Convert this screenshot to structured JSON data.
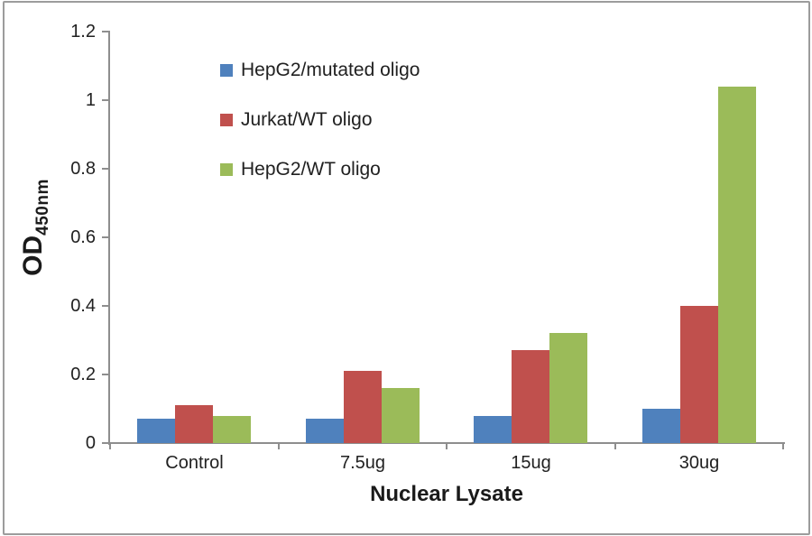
{
  "chart_data": {
    "type": "bar",
    "categories": [
      "Control",
      "7.5ug",
      "15ug",
      "30ug"
    ],
    "series": [
      {
        "name": "HepG2/mutated oligo",
        "color": "#4F81BD",
        "values": [
          0.07,
          0.07,
          0.08,
          0.1
        ]
      },
      {
        "name": "Jurkat/WT oligo",
        "color": "#C0504D",
        "values": [
          0.11,
          0.21,
          0.27,
          0.4
        ]
      },
      {
        "name": "HepG2/WT oligo",
        "color": "#9BBB59",
        "values": [
          0.08,
          0.16,
          0.32,
          1.04
        ]
      }
    ],
    "title": "",
    "xlabel": "Nuclear Lysate",
    "ylabel_main": "OD",
    "ylabel_sub": "450nm",
    "ylim": [
      0,
      1.2
    ],
    "ytick_step": 0.2,
    "ytick_labels": [
      "0",
      "0.2",
      "0.4",
      "0.6",
      "0.8",
      "1",
      "1.2"
    ],
    "grid": false,
    "legend_position": "inside-upper-left",
    "axis_color": "#8e8e8e",
    "frame_color": "#9c9c9c"
  }
}
